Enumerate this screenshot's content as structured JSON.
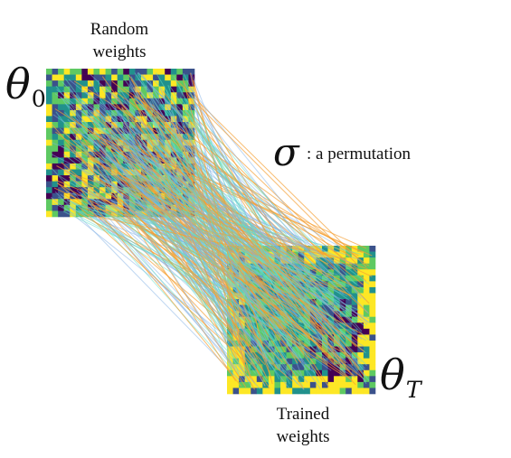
{
  "labels": {
    "random_line1": "Random",
    "random_line2": "weights",
    "trained_line1": "Trained",
    "trained_line2": "weights",
    "theta0_symbol": "θ",
    "theta0_sub": "0",
    "thetaT_symbol": "θ",
    "thetaT_sub": "T",
    "sigma_symbol": "σ",
    "permutation_text": ": a permutation"
  },
  "colors": {
    "connection_orange": "#f5a033",
    "connection_teal": "#5ee0c8",
    "connection_blue": "#7fb0e6",
    "palette": [
      "#440154",
      "#3b528b",
      "#21918c",
      "#5ec962",
      "#fde725"
    ]
  },
  "matrices": {
    "grid_size": 25
  }
}
